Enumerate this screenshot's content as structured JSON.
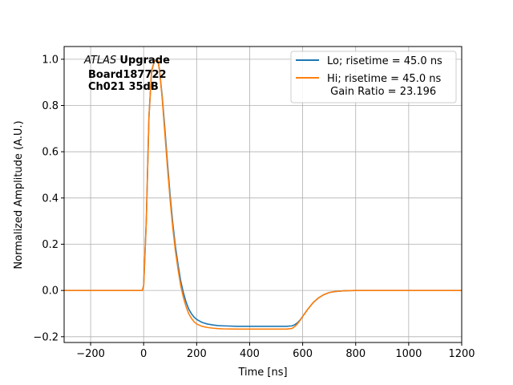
{
  "chart_data": {
    "type": "line",
    "xlabel": "Time [ns]",
    "ylabel": "Normalized Amplitude (A.U.)",
    "xlim": [
      -300,
      1200
    ],
    "ylim": [
      -0.225,
      1.055
    ],
    "xticks": [
      -200,
      0,
      200,
      400,
      600,
      800,
      1000,
      1200
    ],
    "xtick_labels": [
      "−200",
      "0",
      "200",
      "400",
      "600",
      "800",
      "1000",
      "1200"
    ],
    "yticks": [
      -0.2,
      0.0,
      0.2,
      0.4,
      0.6,
      0.8,
      1.0
    ],
    "ytick_labels": [
      "−0.2",
      "0.0",
      "0.2",
      "0.4",
      "0.6",
      "0.8",
      "1.0"
    ],
    "grid": true,
    "legend_position": "top-right",
    "annotation": {
      "atlas": "ATLAS",
      "upgrade": "Upgrade",
      "line2": "Board187722",
      "line3": "Ch021 35dB"
    },
    "series": [
      {
        "name": "Lo; risetime = 45.0 ns",
        "color": "#1f77b4",
        "x": [
          -300,
          -200,
          -100,
          -5,
          0,
          10,
          20,
          30,
          40,
          50,
          55,
          60,
          70,
          80,
          90,
          100,
          110,
          120,
          130,
          140,
          150,
          160,
          170,
          180,
          190,
          200,
          220,
          240,
          260,
          280,
          300,
          350,
          400,
          450,
          500,
          540,
          560,
          570,
          580,
          590,
          600,
          620,
          640,
          660,
          680,
          700,
          720,
          740,
          760,
          800,
          900,
          1000,
          1100,
          1200
        ],
        "y": [
          0.0,
          0.0,
          0.0,
          0.0,
          0.02,
          0.3,
          0.75,
          0.95,
          0.99,
          1.0,
          0.99,
          0.95,
          0.84,
          0.7,
          0.55,
          0.41,
          0.29,
          0.19,
          0.11,
          0.04,
          -0.01,
          -0.05,
          -0.08,
          -0.1,
          -0.115,
          -0.125,
          -0.138,
          -0.145,
          -0.149,
          -0.152,
          -0.153,
          -0.155,
          -0.155,
          -0.155,
          -0.155,
          -0.155,
          -0.153,
          -0.148,
          -0.14,
          -0.128,
          -0.112,
          -0.08,
          -0.052,
          -0.032,
          -0.018,
          -0.009,
          -0.005,
          -0.003,
          -0.001,
          0.0,
          0.0,
          0.0,
          0.0,
          0.0
        ]
      },
      {
        "name": "Hi; risetime = 45.0 ns\n Gain Ratio = 23.196",
        "color": "#ff7f0e",
        "x": [
          -300,
          -200,
          -100,
          -5,
          0,
          10,
          20,
          30,
          40,
          50,
          55,
          60,
          70,
          80,
          90,
          100,
          110,
          120,
          130,
          140,
          150,
          160,
          170,
          180,
          190,
          200,
          220,
          240,
          260,
          280,
          300,
          350,
          400,
          450,
          500,
          540,
          560,
          570,
          580,
          590,
          600,
          620,
          640,
          660,
          680,
          700,
          720,
          740,
          760,
          800,
          900,
          1000,
          1100,
          1200
        ],
        "y": [
          0.0,
          0.0,
          0.0,
          0.0,
          0.02,
          0.3,
          0.75,
          0.95,
          0.99,
          1.0,
          0.99,
          0.95,
          0.83,
          0.68,
          0.53,
          0.39,
          0.27,
          0.17,
          0.09,
          0.02,
          -0.03,
          -0.07,
          -0.1,
          -0.12,
          -0.135,
          -0.145,
          -0.155,
          -0.16,
          -0.163,
          -0.165,
          -0.166,
          -0.167,
          -0.167,
          -0.167,
          -0.167,
          -0.167,
          -0.164,
          -0.156,
          -0.145,
          -0.13,
          -0.113,
          -0.08,
          -0.052,
          -0.032,
          -0.018,
          -0.009,
          -0.005,
          -0.003,
          -0.001,
          0.0,
          0.0,
          0.0,
          0.0,
          0.0
        ]
      }
    ]
  }
}
